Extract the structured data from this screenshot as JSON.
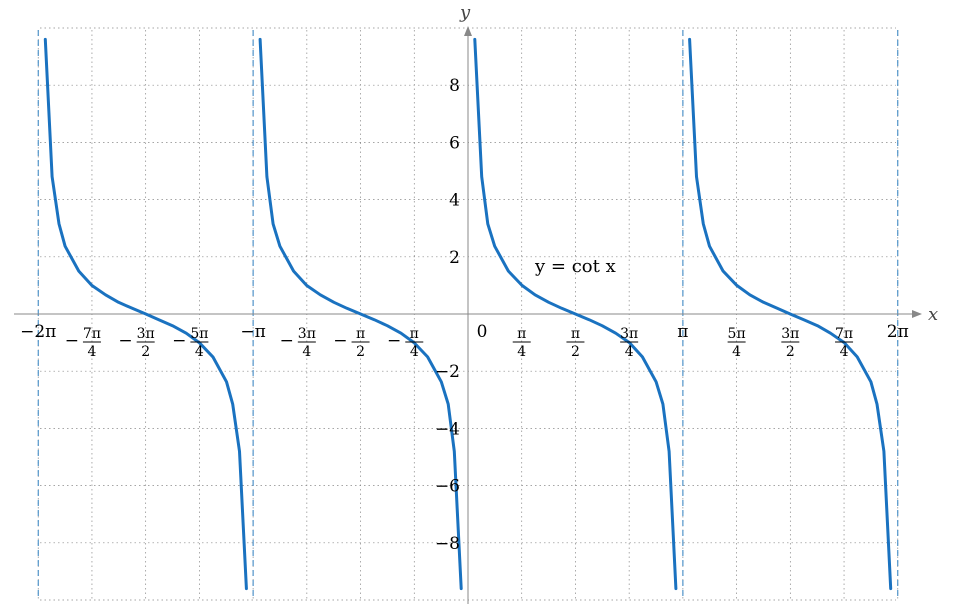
{
  "chart_data": {
    "type": "line",
    "function": "cot x",
    "annotation": "y = cot x",
    "xlabel": "x",
    "ylabel": "y",
    "xlim": [
      -6.283185,
      6.283185
    ],
    "ylim": [
      -10,
      10
    ],
    "grid": true,
    "grid_style": "dotted",
    "line_color": "#1a72c0",
    "asymptote_color": "#2f7fbf",
    "asymptotes_x": [
      -6.283185,
      -3.141593,
      0,
      3.141593,
      6.283185
    ],
    "x_ticks": [
      {
        "value": -6.283185,
        "text": "−2π"
      },
      {
        "value": -5.497787,
        "sign": "−",
        "num": "7π",
        "den": "4"
      },
      {
        "value": -4.712389,
        "sign": "−",
        "num": "3π",
        "den": "2"
      },
      {
        "value": -3.926991,
        "sign": "−",
        "num": "5π",
        "den": "4"
      },
      {
        "value": -3.141593,
        "text": "−π"
      },
      {
        "value": -2.356194,
        "sign": "−",
        "num": "3π",
        "den": "4"
      },
      {
        "value": -1.570796,
        "sign": "−",
        "num": "π",
        "den": "2"
      },
      {
        "value": -0.785398,
        "sign": "−",
        "num": "π",
        "den": "4"
      },
      {
        "value": 0,
        "text": "0"
      },
      {
        "value": 0.785398,
        "num": "π",
        "den": "4"
      },
      {
        "value": 1.570796,
        "num": "π",
        "den": "2"
      },
      {
        "value": 2.356194,
        "num": "3π",
        "den": "4"
      },
      {
        "value": 3.141593,
        "text": "π"
      },
      {
        "value": 3.926991,
        "num": "5π",
        "den": "4"
      },
      {
        "value": 4.712389,
        "num": "3π",
        "den": "2"
      },
      {
        "value": 5.497787,
        "num": "7π",
        "den": "4"
      },
      {
        "value": 6.283185,
        "text": "2π"
      }
    ],
    "y_ticks": [
      {
        "value": 8,
        "text": "8"
      },
      {
        "value": 6,
        "text": "6"
      },
      {
        "value": 4,
        "text": "4"
      },
      {
        "value": 2,
        "text": "2"
      },
      {
        "value": -2,
        "text": "−2"
      },
      {
        "value": -4,
        "text": "−4"
      },
      {
        "value": -6,
        "text": "−6"
      },
      {
        "value": -8,
        "text": "−8"
      }
    ],
    "series": [
      {
        "x": [
          -6.18,
          -6.08,
          -5.98,
          -5.89,
          -5.69,
          -5.5,
          -5.3,
          -5.11,
          -4.91,
          -4.71,
          -4.52,
          -4.32,
          -4.12,
          -3.93,
          -3.73,
          -3.53,
          -3.44,
          -3.34,
          -3.24
        ],
        "y": [
          9.6,
          4.8,
          3.15,
          2.37,
          1.5,
          1.0,
          0.67,
          0.41,
          0.2,
          0,
          -0.2,
          -0.41,
          -0.67,
          -1.0,
          -1.5,
          -2.37,
          -3.15,
          -4.8,
          -9.6
        ]
      },
      {
        "x": [
          -3.04,
          -2.94,
          -2.85,
          -2.75,
          -2.55,
          -2.36,
          -2.16,
          -1.96,
          -1.77,
          -1.57,
          -1.37,
          -1.18,
          -0.98,
          -0.79,
          -0.59,
          -0.39,
          -0.29,
          -0.2,
          -0.1
        ],
        "y": [
          9.6,
          4.8,
          3.15,
          2.37,
          1.5,
          1.0,
          0.67,
          0.41,
          0.2,
          0,
          -0.2,
          -0.41,
          -0.67,
          -1.0,
          -1.5,
          -2.37,
          -3.15,
          -4.8,
          -9.6
        ]
      },
      {
        "x": [
          0.1,
          0.2,
          0.29,
          0.39,
          0.59,
          0.79,
          0.98,
          1.18,
          1.37,
          1.57,
          1.77,
          1.96,
          2.16,
          2.36,
          2.55,
          2.75,
          2.85,
          2.94,
          3.04
        ],
        "y": [
          9.6,
          4.8,
          3.15,
          2.37,
          1.5,
          1.0,
          0.67,
          0.41,
          0.2,
          0,
          -0.2,
          -0.41,
          -0.67,
          -1.0,
          -1.5,
          -2.37,
          -3.15,
          -4.8,
          -9.6
        ]
      },
      {
        "x": [
          3.24,
          3.34,
          3.44,
          3.53,
          3.73,
          3.93,
          4.12,
          4.32,
          4.52,
          4.71,
          4.91,
          5.11,
          5.3,
          5.5,
          5.69,
          5.89,
          5.98,
          6.08,
          6.18
        ],
        "y": [
          9.6,
          4.8,
          3.15,
          2.37,
          1.5,
          1.0,
          0.67,
          0.41,
          0.2,
          0,
          -0.2,
          -0.41,
          -0.67,
          -1.0,
          -1.5,
          -2.37,
          -3.15,
          -4.8,
          -9.6
        ]
      }
    ]
  }
}
